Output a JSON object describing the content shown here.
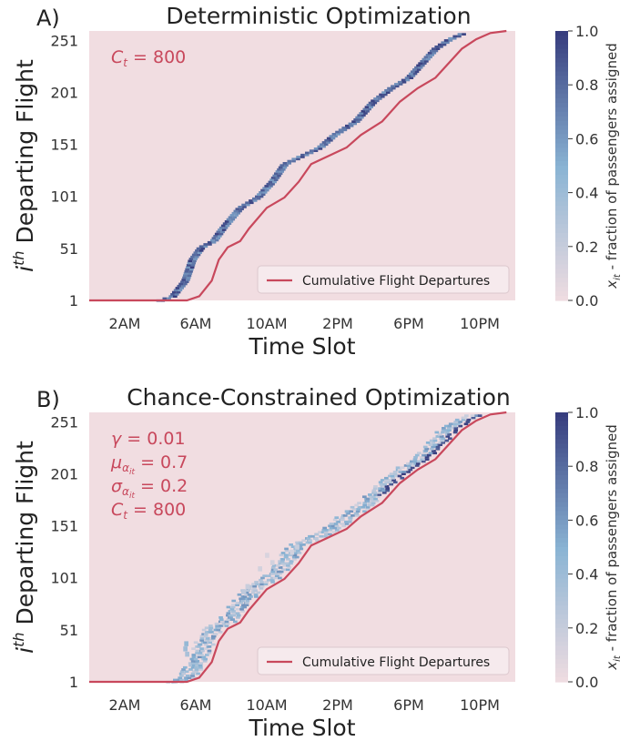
{
  "chart_data": [
    {
      "type": "heatmap",
      "panel_label": "A)",
      "title": "Deterministic Optimization",
      "xlabel": "Time Slot",
      "ylabel_main": "i",
      "ylabel_sup": "th",
      "ylabel_rest": " Departing Flight",
      "x_ticks": [
        "2AM",
        "6AM",
        "10AM",
        "2PM",
        "6PM",
        "10PM"
      ],
      "x_tick_hours": [
        2,
        6,
        10,
        14,
        18,
        22
      ],
      "x_range_hours": [
        0,
        24
      ],
      "y_ticks": [
        "1",
        "51",
        "101",
        "151",
        "201",
        "251"
      ],
      "y_tick_values": [
        1,
        51,
        101,
        151,
        201,
        251
      ],
      "y_range": [
        1,
        260
      ],
      "annotations": [
        {
          "main": "C",
          "sub": "t",
          "rest": " = 800"
        }
      ],
      "legend": {
        "label": "Cumulative Flight Departures",
        "position": "lower-right"
      },
      "colorbar": {
        "label_main": "x",
        "label_sub": "it",
        "label_rest": " - fraction of passengers assigned",
        "ticks": [
          "0.0",
          "0.2",
          "0.4",
          "0.6",
          "0.8",
          "1.0"
        ],
        "range": [
          0,
          1
        ]
      },
      "assignment": {
        "lead_hours": 1.6,
        "noise": 0.0,
        "value": 1.0
      },
      "cumulative_departures": [
        [
          0,
          1
        ],
        [
          3.2,
          1
        ],
        [
          5.5,
          1
        ],
        [
          6.2,
          5
        ],
        [
          6.9,
          20
        ],
        [
          7.3,
          40
        ],
        [
          7.8,
          52
        ],
        [
          8.5,
          58
        ],
        [
          9,
          70
        ],
        [
          10,
          90
        ],
        [
          11,
          100
        ],
        [
          11.8,
          115
        ],
        [
          12.5,
          132
        ],
        [
          13.5,
          140
        ],
        [
          14.5,
          148
        ],
        [
          15.3,
          160
        ],
        [
          16.5,
          173
        ],
        [
          17.5,
          192
        ],
        [
          18.5,
          205
        ],
        [
          19.5,
          215
        ],
        [
          20.3,
          230
        ],
        [
          21,
          243
        ],
        [
          21.8,
          252
        ],
        [
          22.6,
          258
        ],
        [
          23.5,
          260
        ]
      ]
    },
    {
      "type": "heatmap",
      "panel_label": "B)",
      "title": "Chance-Constrained Optimization",
      "xlabel": "Time Slot",
      "ylabel_main": "i",
      "ylabel_sup": "th",
      "ylabel_rest": " Departing Flight",
      "x_ticks": [
        "2AM",
        "6AM",
        "10AM",
        "2PM",
        "6PM",
        "10PM"
      ],
      "x_tick_hours": [
        2,
        6,
        10,
        14,
        18,
        22
      ],
      "x_range_hours": [
        0,
        24
      ],
      "y_ticks": [
        "1",
        "51",
        "101",
        "151",
        "201",
        "251"
      ],
      "y_tick_values": [
        1,
        51,
        101,
        151,
        201,
        251
      ],
      "y_range": [
        1,
        260
      ],
      "annotations": [
        {
          "main": "γ",
          "sub": "",
          "rest": " = 0.01"
        },
        {
          "main": "μ",
          "sub": "α",
          "subsub": "it",
          "rest": " = 0.7"
        },
        {
          "main": "σ",
          "sub": "α",
          "subsub": "it",
          "rest": " = 0.2"
        },
        {
          "main": "C",
          "sub": "t",
          "rest": " = 800"
        }
      ],
      "legend": {
        "label": "Cumulative Flight Departures",
        "position": "lower-right"
      },
      "colorbar": {
        "label_main": "x",
        "label_sub": "it",
        "label_rest": " - fraction of passengers assigned",
        "ticks": [
          "0.0",
          "0.2",
          "0.4",
          "0.6",
          "0.8",
          "1.0"
        ],
        "range": [
          0,
          1
        ]
      },
      "assignment": {
        "lead_hours": 0.9,
        "noise": 0.35,
        "value": 0.4
      },
      "cumulative_departures": [
        [
          0,
          1
        ],
        [
          3.2,
          1
        ],
        [
          5.5,
          1
        ],
        [
          6.2,
          5
        ],
        [
          6.9,
          20
        ],
        [
          7.3,
          40
        ],
        [
          7.8,
          52
        ],
        [
          8.5,
          58
        ],
        [
          9,
          70
        ],
        [
          10,
          90
        ],
        [
          11,
          100
        ],
        [
          11.8,
          115
        ],
        [
          12.5,
          132
        ],
        [
          13.5,
          140
        ],
        [
          14.5,
          148
        ],
        [
          15.3,
          160
        ],
        [
          16.5,
          173
        ],
        [
          17.5,
          192
        ],
        [
          18.5,
          205
        ],
        [
          19.5,
          215
        ],
        [
          20.3,
          230
        ],
        [
          21,
          243
        ],
        [
          21.8,
          252
        ],
        [
          22.6,
          258
        ],
        [
          23.5,
          260
        ]
      ]
    }
  ],
  "colors": {
    "background": "#f1dde1",
    "line": "#c8485c",
    "annotation": "#c8485c",
    "cmap_low": "#f1dde1",
    "cmap_mid": "#8ab4d4",
    "cmap_high": "#373d7e"
  }
}
